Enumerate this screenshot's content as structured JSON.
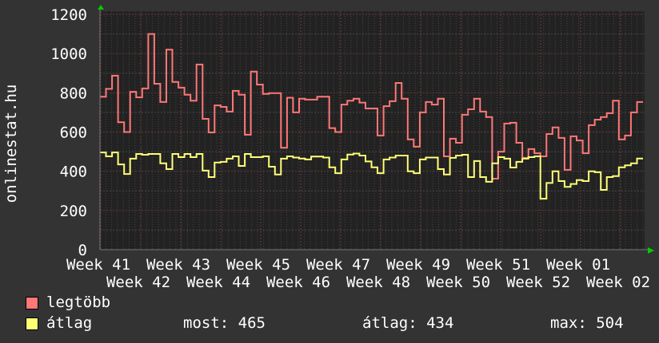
{
  "chart_data": {
    "type": "line",
    "step": true,
    "ylabel": "onlinestat.hu",
    "ylim": [
      0,
      1200
    ],
    "yticks": [
      "0",
      "200",
      "400",
      "600",
      "800",
      "1000",
      "1200"
    ],
    "xticks": [
      "Week 41",
      "Week 42",
      "Week 43",
      "Week 44",
      "Week 45",
      "Week 46",
      "Week 47",
      "Week 48",
      "Week 49",
      "Week 50",
      "Week 51",
      "Week 52",
      "Week 01",
      "Week 02"
    ],
    "grid": true,
    "background": "#222222",
    "series": [
      {
        "name": "legtöbb",
        "color": "#ff7777",
        "values": [
          780,
          820,
          887,
          650,
          600,
          805,
          777,
          822,
          1100,
          846,
          753,
          1020,
          855,
          826,
          790,
          760,
          944,
          667,
          598,
          736,
          728,
          704,
          810,
          790,
          586,
          908,
          842,
          794,
          798,
          798,
          520,
          775,
          700,
          770,
          765,
          765,
          780,
          780,
          620,
          600,
          740,
          760,
          770,
          750,
          720,
          720,
          582,
          732,
          757,
          850,
          770,
          562,
          525,
          700,
          753,
          740,
          770,
          476,
          566,
          545,
          688,
          716,
          770,
          704,
          676,
          362,
          500,
          643,
          647,
          545,
          468,
          513,
          492,
          476,
          590,
          623,
          570,
          407,
          578,
          557,
          492,
          635,
          663,
          676,
          696,
          760,
          562,
          582,
          700,
          753
        ]
      },
      {
        "name": "átlag",
        "color": "#ffff77",
        "values": [
          496,
          476,
          496,
          435,
          386,
          464,
          488,
          484,
          488,
          488,
          440,
          411,
          488,
          472,
          488,
          472,
          488,
          403,
          370,
          444,
          448,
          464,
          476,
          427,
          488,
          472,
          472,
          476,
          423,
          383,
          464,
          476,
          470,
          465,
          460,
          475,
          475,
          470,
          420,
          390,
          460,
          485,
          490,
          480,
          450,
          420,
          390,
          460,
          470,
          480,
          480,
          400,
          390,
          460,
          470,
          470,
          411,
          383,
          468,
          480,
          484,
          370,
          452,
          370,
          346,
          440,
          472,
          464,
          419,
          448,
          464,
          472,
          476,
          260,
          340,
          400,
          350,
          320,
          335,
          355,
          350,
          400,
          395,
          305,
          370,
          375,
          420,
          430,
          440,
          465
        ]
      }
    ]
  },
  "legend": {
    "items": [
      {
        "label": "legtöbb",
        "color": "#ff7777"
      },
      {
        "label": "átlag",
        "color": "#ffff77"
      }
    ],
    "stats": {
      "most": "most: 465",
      "avg": "átlag: 434",
      "max": "max: 504"
    }
  }
}
